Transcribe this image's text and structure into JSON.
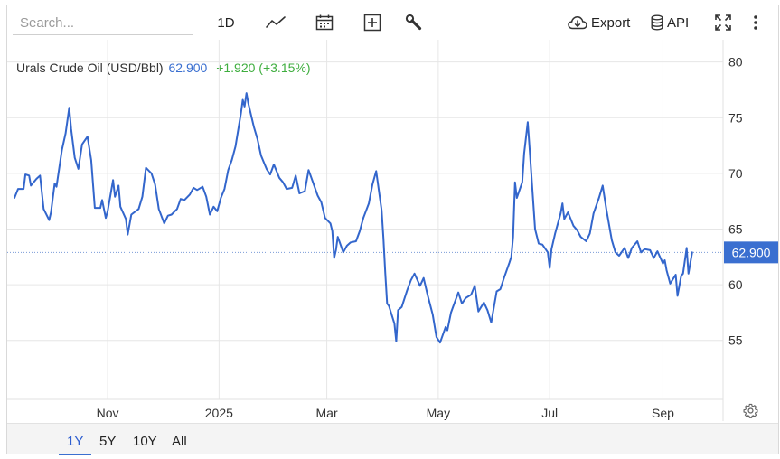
{
  "search": {
    "placeholder": "Search..."
  },
  "toolbar": {
    "interval_label": "1D",
    "export_label": "Export",
    "api_label": "API",
    "icons": [
      "line-chart-icon",
      "calendar-icon",
      "add-icon",
      "wrench-icon",
      "cloud-download-icon",
      "database-icon",
      "fullscreen-icon",
      "more-vertical-icon"
    ]
  },
  "legend": {
    "name": "Urals Crude Oil (USD/Bbl)",
    "value": "62.900",
    "change": "+1.920 (+3.15%)"
  },
  "ranges": [
    "1Y",
    "5Y",
    "10Y",
    "All"
  ],
  "active_range": "1Y",
  "colors": {
    "line": "#3366cc",
    "accent": "#3a6fd0",
    "positive": "#3fae3f",
    "grid": "#e6e6e6"
  },
  "chart_data": {
    "type": "line",
    "title": "",
    "xlabel": "",
    "ylabel": "",
    "x_tick_labels": [
      "Nov",
      "2025",
      "Mar",
      "May",
      "Jul",
      "Sep"
    ],
    "x_tick_dates": [
      "2024-11-01",
      "2025-01-01",
      "2025-03-01",
      "2025-05-01",
      "2025-07-01",
      "2025-09-01"
    ],
    "y_ticks": [
      55,
      60,
      65,
      70,
      75,
      80
    ],
    "ylim": [
      49.7,
      82.0
    ],
    "xlim": [
      "2024-09-11",
      "2025-09-27"
    ],
    "last_value": 62.9,
    "grid": true,
    "series": [
      {
        "points": [
          [
            "2024-09-11",
            67.8
          ],
          [
            "2024-09-13",
            68.6
          ],
          [
            "2024-09-16",
            68.6
          ],
          [
            "2024-09-17",
            69.9
          ],
          [
            "2024-09-19",
            69.8
          ],
          [
            "2024-09-20",
            68.9
          ],
          [
            "2024-09-23",
            69.5
          ],
          [
            "2024-09-25",
            69.8
          ],
          [
            "2024-09-27",
            66.8
          ],
          [
            "2024-09-30",
            65.8
          ],
          [
            "2024-10-01",
            66.5
          ],
          [
            "2024-10-03",
            69.1
          ],
          [
            "2024-10-04",
            68.8
          ],
          [
            "2024-10-07",
            72.1
          ],
          [
            "2024-10-09",
            73.6
          ],
          [
            "2024-10-11",
            75.9
          ],
          [
            "2024-10-12",
            74.0
          ],
          [
            "2024-10-14",
            71.4
          ],
          [
            "2024-10-16",
            70.4
          ],
          [
            "2024-10-18",
            72.6
          ],
          [
            "2024-10-21",
            73.3
          ],
          [
            "2024-10-23",
            71.2
          ],
          [
            "2024-10-25",
            66.9
          ],
          [
            "2024-10-28",
            66.9
          ],
          [
            "2024-10-29",
            67.6
          ],
          [
            "2024-10-31",
            66.0
          ],
          [
            "2024-11-01",
            66.6
          ],
          [
            "2024-11-04",
            69.4
          ],
          [
            "2024-11-05",
            67.9
          ],
          [
            "2024-11-07",
            68.9
          ],
          [
            "2024-11-08",
            67.0
          ],
          [
            "2024-11-11",
            65.9
          ],
          [
            "2024-11-12",
            64.5
          ],
          [
            "2024-11-14",
            66.3
          ],
          [
            "2024-11-18",
            66.8
          ],
          [
            "2024-11-20",
            67.9
          ],
          [
            "2024-11-22",
            70.5
          ],
          [
            "2024-11-25",
            70.0
          ],
          [
            "2024-11-27",
            69.0
          ],
          [
            "2024-11-29",
            66.8
          ],
          [
            "2024-12-02",
            65.5
          ],
          [
            "2024-12-04",
            66.2
          ],
          [
            "2024-12-06",
            66.3
          ],
          [
            "2024-12-09",
            66.8
          ],
          [
            "2024-12-11",
            67.7
          ],
          [
            "2024-12-13",
            67.6
          ],
          [
            "2024-12-16",
            68.1
          ],
          [
            "2024-12-18",
            68.7
          ],
          [
            "2024-12-20",
            68.5
          ],
          [
            "2024-12-23",
            68.8
          ],
          [
            "2024-12-25",
            67.9
          ],
          [
            "2024-12-27",
            66.3
          ],
          [
            "2024-12-29",
            67.0
          ],
          [
            "2024-12-31",
            66.6
          ],
          [
            "2025-01-02",
            67.8
          ],
          [
            "2025-01-04",
            68.6
          ],
          [
            "2025-01-06",
            70.3
          ],
          [
            "2025-01-08",
            71.2
          ],
          [
            "2025-01-10",
            72.4
          ],
          [
            "2025-01-13",
            75.4
          ],
          [
            "2025-01-14",
            76.6
          ],
          [
            "2025-01-15",
            76.0
          ],
          [
            "2025-01-16",
            77.2
          ],
          [
            "2025-01-17",
            76.3
          ],
          [
            "2025-01-20",
            74.2
          ],
          [
            "2025-01-22",
            73.1
          ],
          [
            "2025-01-24",
            71.6
          ],
          [
            "2025-01-27",
            70.4
          ],
          [
            "2025-01-29",
            69.9
          ],
          [
            "2025-01-31",
            70.8
          ],
          [
            "2025-02-03",
            69.6
          ],
          [
            "2025-02-05",
            69.2
          ],
          [
            "2025-02-07",
            68.6
          ],
          [
            "2025-02-10",
            68.7
          ],
          [
            "2025-02-12",
            69.8
          ],
          [
            "2025-02-14",
            68.2
          ],
          [
            "2025-02-17",
            68.4
          ],
          [
            "2025-02-19",
            70.3
          ],
          [
            "2025-02-21",
            69.4
          ],
          [
            "2025-02-24",
            68.0
          ],
          [
            "2025-02-26",
            67.4
          ],
          [
            "2025-02-28",
            66.0
          ],
          [
            "2025-03-03",
            65.5
          ],
          [
            "2025-03-04",
            64.8
          ],
          [
            "2025-03-05",
            62.4
          ],
          [
            "2025-03-06",
            63.1
          ],
          [
            "2025-03-07",
            64.3
          ],
          [
            "2025-03-10",
            62.9
          ],
          [
            "2025-03-11",
            63.2
          ],
          [
            "2025-03-12",
            63.5
          ],
          [
            "2025-03-14",
            63.8
          ],
          [
            "2025-03-17",
            63.9
          ],
          [
            "2025-03-19",
            64.8
          ],
          [
            "2025-03-21",
            66.0
          ],
          [
            "2025-03-24",
            67.3
          ],
          [
            "2025-03-26",
            69.0
          ],
          [
            "2025-03-28",
            70.2
          ],
          [
            "2025-03-31",
            66.7
          ],
          [
            "2025-04-01",
            64.2
          ],
          [
            "2025-04-02",
            61.0
          ],
          [
            "2025-04-03",
            58.3
          ],
          [
            "2025-04-04",
            58.1
          ],
          [
            "2025-04-07",
            56.5
          ],
          [
            "2025-04-08",
            54.9
          ],
          [
            "2025-04-09",
            57.7
          ],
          [
            "2025-04-11",
            58.0
          ],
          [
            "2025-04-14",
            59.5
          ],
          [
            "2025-04-16",
            60.4
          ],
          [
            "2025-04-18",
            61.0
          ],
          [
            "2025-04-21",
            59.9
          ],
          [
            "2025-04-23",
            60.6
          ],
          [
            "2025-04-25",
            59.2
          ],
          [
            "2025-04-28",
            57.3
          ],
          [
            "2025-04-30",
            55.3
          ],
          [
            "2025-05-02",
            54.8
          ],
          [
            "2025-05-05",
            56.2
          ],
          [
            "2025-05-06",
            55.9
          ],
          [
            "2025-05-08",
            57.5
          ],
          [
            "2025-05-12",
            59.3
          ],
          [
            "2025-05-14",
            58.3
          ],
          [
            "2025-05-16",
            58.8
          ],
          [
            "2025-05-19",
            59.1
          ],
          [
            "2025-05-21",
            59.9
          ],
          [
            "2025-05-23",
            57.6
          ],
          [
            "2025-05-26",
            58.4
          ],
          [
            "2025-05-28",
            57.7
          ],
          [
            "2025-05-30",
            56.6
          ],
          [
            "2025-06-02",
            59.4
          ],
          [
            "2025-06-04",
            59.6
          ],
          [
            "2025-06-06",
            60.6
          ],
          [
            "2025-06-09",
            62.0
          ],
          [
            "2025-06-10",
            62.5
          ],
          [
            "2025-06-11",
            64.3
          ],
          [
            "2025-06-12",
            69.2
          ],
          [
            "2025-06-13",
            67.8
          ],
          [
            "2025-06-16",
            69.2
          ],
          [
            "2025-06-17",
            71.8
          ],
          [
            "2025-06-19",
            74.6
          ],
          [
            "2025-06-20",
            72.3
          ],
          [
            "2025-06-23",
            65.0
          ],
          [
            "2025-06-25",
            63.7
          ],
          [
            "2025-06-27",
            63.6
          ],
          [
            "2025-06-30",
            62.9
          ],
          [
            "2025-07-01",
            61.5
          ],
          [
            "2025-07-02",
            63.2
          ],
          [
            "2025-07-04",
            64.6
          ],
          [
            "2025-07-07",
            66.4
          ],
          [
            "2025-07-08",
            67.3
          ],
          [
            "2025-07-09",
            65.9
          ],
          [
            "2025-07-11",
            66.5
          ],
          [
            "2025-07-14",
            65.3
          ],
          [
            "2025-07-16",
            64.9
          ],
          [
            "2025-07-18",
            64.3
          ],
          [
            "2025-07-21",
            63.9
          ],
          [
            "2025-07-23",
            64.6
          ],
          [
            "2025-07-25",
            66.4
          ],
          [
            "2025-07-28",
            67.8
          ],
          [
            "2025-07-30",
            68.9
          ],
          [
            "2025-08-01",
            66.8
          ],
          [
            "2025-08-04",
            64.0
          ],
          [
            "2025-08-06",
            62.9
          ],
          [
            "2025-08-08",
            62.6
          ],
          [
            "2025-08-11",
            63.3
          ],
          [
            "2025-08-13",
            62.4
          ],
          [
            "2025-08-15",
            63.3
          ],
          [
            "2025-08-18",
            63.9
          ],
          [
            "2025-08-20",
            62.9
          ],
          [
            "2025-08-22",
            63.2
          ],
          [
            "2025-08-25",
            63.1
          ],
          [
            "2025-08-27",
            62.4
          ],
          [
            "2025-08-29",
            63.0
          ],
          [
            "2025-09-01",
            61.9
          ],
          [
            "2025-09-02",
            62.2
          ],
          [
            "2025-09-03",
            61.3
          ],
          [
            "2025-09-05",
            60.1
          ],
          [
            "2025-09-08",
            60.9
          ],
          [
            "2025-09-09",
            59.0
          ],
          [
            "2025-09-11",
            60.8
          ],
          [
            "2025-09-12",
            61.0
          ],
          [
            "2025-09-14",
            63.3
          ],
          [
            "2025-09-15",
            61.0
          ],
          [
            "2025-09-17",
            62.9
          ]
        ]
      }
    ]
  }
}
